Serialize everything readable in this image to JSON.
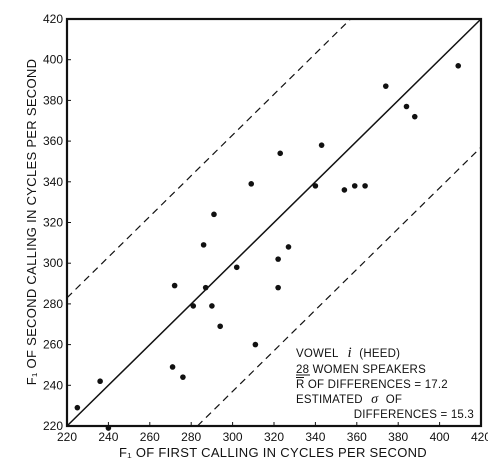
{
  "chart_data": {
    "type": "scatter",
    "xlabel": "F₁ OF FIRST CALLING IN CYCLES PER SECOND",
    "ylabel": "F₁ OF SECOND CALLING IN CYCLES PER SECOND",
    "xlim": [
      220,
      420
    ],
    "ylim": [
      220,
      420
    ],
    "xticks": [
      "220",
      "240",
      "260",
      "280",
      "300",
      "320",
      "340",
      "360",
      "380",
      "400",
      "420"
    ],
    "yticks": [
      "220",
      "240",
      "260",
      "280",
      "300",
      "320",
      "340",
      "360",
      "380",
      "400",
      "420"
    ],
    "grid": false,
    "points": [
      [
        225,
        229
      ],
      [
        236,
        242
      ],
      [
        240,
        219
      ],
      [
        271,
        249
      ],
      [
        272,
        289
      ],
      [
        276,
        244
      ],
      [
        281,
        279
      ],
      [
        286,
        309
      ],
      [
        287,
        288
      ],
      [
        290,
        279
      ],
      [
        291,
        324
      ],
      [
        294,
        269
      ],
      [
        302,
        298
      ],
      [
        309,
        339
      ],
      [
        311,
        260
      ],
      [
        322,
        302
      ],
      [
        322,
        288
      ],
      [
        323,
        354
      ],
      [
        327,
        308
      ],
      [
        340,
        338
      ],
      [
        343,
        358
      ],
      [
        354,
        336
      ],
      [
        359,
        338
      ],
      [
        364,
        338
      ],
      [
        374,
        387
      ],
      [
        384,
        377
      ],
      [
        388,
        372
      ],
      [
        409,
        397
      ]
    ],
    "reference_lines": [
      {
        "name": "equality",
        "style": "solid",
        "points": [
          [
            220,
            220
          ],
          [
            420,
            420
          ]
        ]
      },
      {
        "name": "upper-bound",
        "style": "dashed",
        "points": [
          [
            220,
            283
          ],
          [
            357,
            420
          ]
        ]
      },
      {
        "name": "lower-bound",
        "style": "dashed",
        "points": [
          [
            283,
            220
          ],
          [
            420,
            357
          ]
        ]
      }
    ],
    "annotation": {
      "line1": "VOWEL",
      "line1_symbol": "i",
      "line1_suffix": "(HEED)",
      "line2": "28 WOMEN SPEAKERS",
      "line3": "R OF DIFFERENCES = 17.2",
      "line4_prefix": "ESTIMATED",
      "line4_symbol": "σ",
      "line4_suffix": "OF",
      "line5": "DIFFERENCES = 15.3"
    }
  }
}
